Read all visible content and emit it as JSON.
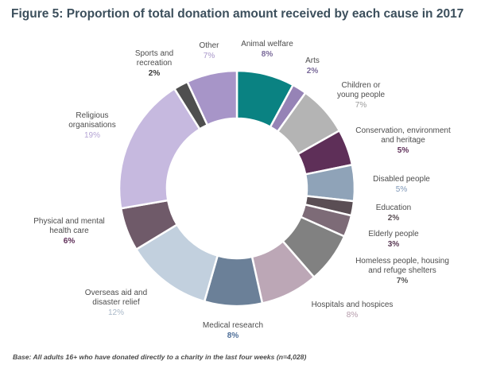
{
  "chart_data": {
    "type": "pie",
    "style": "donut",
    "title": "Figure 5: Proportion of total donation amount received by each cause in 2017",
    "slices": [
      {
        "label": "Animal welfare",
        "value": 8,
        "display": "8%",
        "color": "#0a8282",
        "value_color": "#7a6a9a",
        "value_bold": true
      },
      {
        "label": "Arts",
        "value": 2,
        "display": "2%",
        "color": "#9683b6",
        "value_color": "#7a6a9a",
        "value_bold": true
      },
      {
        "label": "Children or young people",
        "value": 7,
        "display": "7%",
        "color": "#b4b4b4",
        "value_color": "#9a9a9a",
        "value_bold": false
      },
      {
        "label": "Conservation, environment and heritage",
        "value": 5,
        "display": "5%",
        "color": "#5e2f58",
        "value_color": "#5e2f58",
        "value_bold": true
      },
      {
        "label": "Disabled people",
        "value": 5,
        "display": "5%",
        "color": "#8fa3b8",
        "value_color": "#7f98b8",
        "value_bold": false
      },
      {
        "label": "Education",
        "value": 2,
        "display": "2%",
        "color": "#5a4e54",
        "value_color": "#5a4e54",
        "value_bold": true
      },
      {
        "label": "Elderly people",
        "value": 3,
        "display": "3%",
        "color": "#7d6b77",
        "value_color": "#5a3a55",
        "value_bold": true
      },
      {
        "label": "Homeless people, housing and refuge shelters",
        "value": 7,
        "display": "7%",
        "color": "#818181",
        "value_color": "#555555",
        "value_bold": true
      },
      {
        "label": "Hospitals and hospices",
        "value": 8,
        "display": "8%",
        "color": "#bca7b6",
        "value_color": "#b49aaa",
        "value_bold": false
      },
      {
        "label": "Medical research",
        "value": 8,
        "display": "8%",
        "color": "#6b8098",
        "value_color": "#4e6e98",
        "value_bold": true
      },
      {
        "label": "Overseas aid and disaster relief",
        "value": 12,
        "display": "12%",
        "color": "#c2d0de",
        "value_color": "#a9b8c8",
        "value_bold": false
      },
      {
        "label": "Physical and mental health care",
        "value": 6,
        "display": "6%",
        "color": "#6f5a69",
        "value_color": "#5e2f58",
        "value_bold": true
      },
      {
        "label": "Religious organisations",
        "value": 19,
        "display": "19%",
        "color": "#c6b9df",
        "value_color": "#b4a4d4",
        "value_bold": false
      },
      {
        "label": "Sports and recreation",
        "value": 2,
        "display": "2%",
        "color": "#4f4f4f",
        "value_color": "#3a3a3a",
        "value_bold": true
      },
      {
        "label": "Other",
        "value": 7,
        "display": "7%",
        "color": "#a795c8",
        "value_color": "#a795c8",
        "value_bold": false
      }
    ]
  },
  "footnote": "Base: All adults 16+ who have donated directly to a charity in the last four weeks (n=4,028)"
}
